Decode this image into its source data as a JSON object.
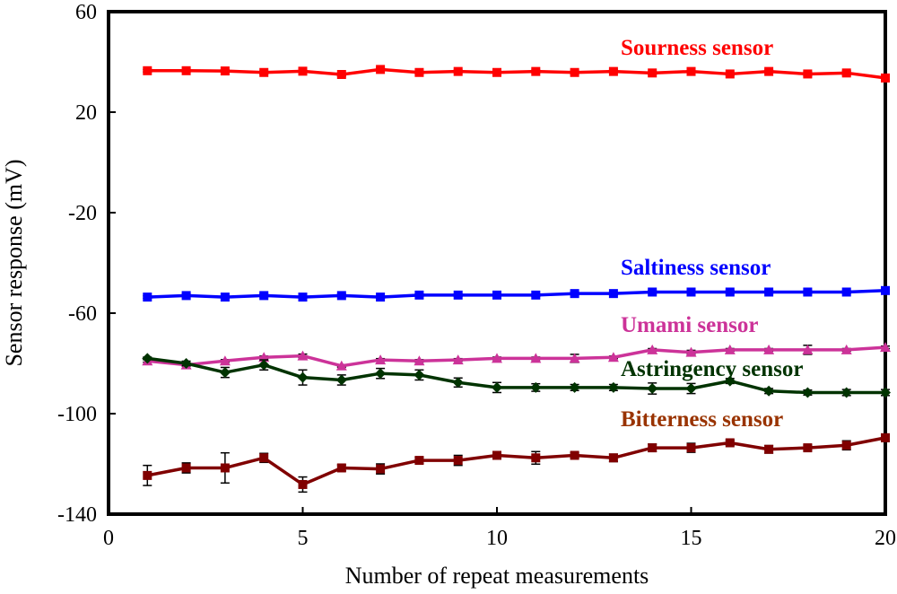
{
  "chart_data": {
    "type": "line",
    "xlabel": "Number of repeat measurements",
    "ylabel": "Sensor response (mV)",
    "xlim": [
      0,
      20
    ],
    "ylim": [
      -140,
      60
    ],
    "xticks": [
      0,
      5,
      10,
      15,
      20
    ],
    "yticks": [
      60,
      20,
      -20,
      -60,
      -100,
      -140
    ],
    "grid": false,
    "x": [
      1,
      2,
      3,
      4,
      5,
      6,
      7,
      8,
      9,
      10,
      11,
      12,
      13,
      14,
      15,
      16,
      17,
      18,
      19,
      20
    ],
    "series": [
      {
        "name": "Sourness sensor",
        "color": "#ff0000",
        "marker": "square",
        "values": [
          36.5,
          36.5,
          36.4,
          35.8,
          36.3,
          35.0,
          37.0,
          35.8,
          36.2,
          35.8,
          36.2,
          35.8,
          36.2,
          35.6,
          36.2,
          35.2,
          36.2,
          35.2,
          35.6,
          33.6
        ],
        "errors": [
          0.5,
          0.5,
          0.5,
          0.5,
          0.7,
          0.6,
          0.5,
          0.5,
          0.5,
          0.5,
          0.5,
          0.5,
          0.5,
          0.5,
          0.5,
          0.5,
          0.5,
          0.8,
          0.8,
          0.5
        ]
      },
      {
        "name": "Saltiness sensor",
        "color": "#0000ff",
        "marker": "square",
        "values": [
          -53.6,
          -53.0,
          -53.6,
          -53.0,
          -53.6,
          -53.0,
          -53.6,
          -52.8,
          -52.8,
          -52.8,
          -52.8,
          -52.2,
          -52.2,
          -51.6,
          -51.6,
          -51.6,
          -51.6,
          -51.6,
          -51.6,
          -51.0
        ],
        "errors": [
          0.5,
          0.5,
          0.5,
          0.5,
          0.5,
          0.5,
          0.5,
          0.5,
          0.5,
          0.5,
          0.5,
          0.5,
          0.5,
          0.5,
          0.5,
          0.5,
          0.5,
          0.5,
          0.5,
          0.5
        ]
      },
      {
        "name": "Umami sensor",
        "color": "#cc3399",
        "marker": "triangle",
        "values": [
          -79.0,
          -80.6,
          -79.0,
          -77.6,
          -77.0,
          -81.0,
          -78.6,
          -79.0,
          -78.6,
          -78.0,
          -78.0,
          -78.0,
          -77.6,
          -74.6,
          -75.6,
          -74.6,
          -74.6,
          -74.6,
          -74.6,
          -73.6
        ],
        "errors": [
          0.5,
          0.5,
          0.5,
          0.5,
          0.7,
          0.5,
          0.5,
          0.5,
          0.5,
          0.5,
          0.5,
          1.6,
          0.5,
          0.5,
          0.8,
          0.5,
          0.5,
          1.8,
          0.5,
          0.5
        ]
      },
      {
        "name": "Astringency sensor",
        "color": "#003300",
        "marker": "diamond",
        "values": [
          -78.0,
          -80.0,
          -83.6,
          -80.6,
          -85.6,
          -86.6,
          -84.0,
          -84.6,
          -87.6,
          -89.6,
          -89.6,
          -89.6,
          -89.6,
          -90.0,
          -90.0,
          -87.0,
          -91.0,
          -91.6,
          -91.6,
          -91.6
        ],
        "errors": [
          0.5,
          0.9,
          2.0,
          2.0,
          3.0,
          2.0,
          2.0,
          2.0,
          1.8,
          2.0,
          1.5,
          1.2,
          1.2,
          2.2,
          2.0,
          1.0,
          1.0,
          1.0,
          1.2,
          1.2
        ]
      },
      {
        "name": "Bitterness sensor",
        "color": "#800000",
        "marker": "square",
        "values": [
          -124.6,
          -121.6,
          -121.6,
          -117.6,
          -128.2,
          -121.6,
          -122.0,
          -118.6,
          -118.6,
          -116.6,
          -117.6,
          -116.6,
          -117.6,
          -113.6,
          -113.6,
          -111.6,
          -114.2,
          -113.6,
          -112.6,
          -109.6
        ],
        "errors": [
          4.0,
          2.0,
          6.0,
          1.8,
          3.0,
          1.2,
          2.0,
          1.2,
          2.0,
          1.0,
          2.5,
          1.0,
          1.5,
          1.5,
          1.8,
          1.0,
          1.5,
          1.0,
          1.8,
          1.5
        ]
      }
    ]
  }
}
